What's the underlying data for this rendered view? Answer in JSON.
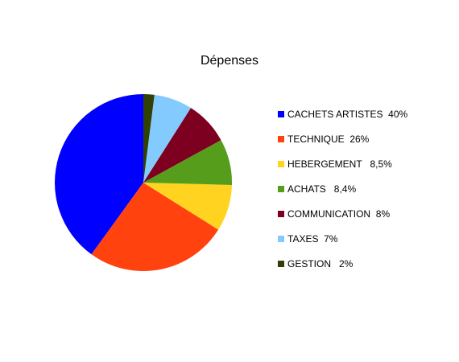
{
  "chart_data": {
    "type": "pie",
    "title": "Dépenses",
    "legend_position": "right",
    "slices": [
      {
        "label": "CACHETS ARTISTES  40%",
        "value": 40,
        "color": "#0000ff"
      },
      {
        "label": "TECHNIQUE  26%",
        "value": 26,
        "color": "#ff420e"
      },
      {
        "label": "HEBERGEMENT   8,5%",
        "value": 8.5,
        "color": "#ffd320"
      },
      {
        "label": "ACHATS   8,4%",
        "value": 8.4,
        "color": "#579d1c"
      },
      {
        "label": "COMMUNICATION  8%",
        "value": 8,
        "color": "#7e0021"
      },
      {
        "label": "TAXES  7%",
        "value": 7,
        "color": "#83caff"
      },
      {
        "label": "GESTION   2%",
        "value": 2,
        "color": "#314004"
      }
    ]
  }
}
